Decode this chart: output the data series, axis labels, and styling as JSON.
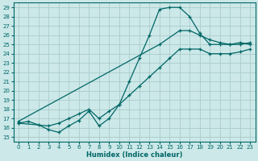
{
  "xlabel": "Humidex (Indice chaleur)",
  "bg_color": "#cce8e8",
  "line_color": "#006666",
  "grid_color": "#aacccc",
  "xlim": [
    -0.5,
    23.5
  ],
  "ylim": [
    14.5,
    29.5
  ],
  "xticks": [
    0,
    1,
    2,
    3,
    4,
    5,
    6,
    7,
    8,
    9,
    10,
    11,
    12,
    13,
    14,
    15,
    16,
    17,
    18,
    19,
    20,
    21,
    22,
    23
  ],
  "yticks": [
    15,
    16,
    17,
    18,
    19,
    20,
    21,
    22,
    23,
    24,
    25,
    26,
    27,
    28,
    29
  ],
  "curve_x": [
    0,
    1,
    2,
    3,
    4,
    5,
    6,
    7,
    8,
    9,
    10,
    11,
    12,
    13,
    14,
    15,
    16,
    17,
    18,
    19,
    20,
    21,
    22,
    23
  ],
  "curve_y": [
    16.5,
    16.7,
    16.3,
    15.8,
    15.5,
    16.2,
    16.8,
    17.8,
    16.2,
    17.0,
    18.5,
    21.0,
    23.5,
    26.0,
    28.8,
    29.0,
    29.0,
    28.0,
    26.2,
    25.0,
    25.0,
    25.0,
    25.2,
    25.0
  ],
  "line_top_x": [
    0,
    14,
    16,
    17,
    18,
    19,
    20,
    21,
    22,
    23
  ],
  "line_top_y": [
    16.7,
    25.0,
    26.5,
    26.5,
    26.0,
    25.5,
    25.2,
    25.0,
    25.0,
    25.2
  ],
  "line_bot_x": [
    0,
    3,
    4,
    5,
    6,
    7,
    8,
    9,
    10,
    11,
    12,
    13,
    14,
    15,
    16,
    17,
    18,
    19,
    20,
    21,
    22,
    23
  ],
  "line_bot_y": [
    16.5,
    16.2,
    16.5,
    17.0,
    17.5,
    18.0,
    17.0,
    17.8,
    18.5,
    19.5,
    20.5,
    21.5,
    22.5,
    23.5,
    24.5,
    24.5,
    24.5,
    24.0,
    24.0,
    24.0,
    24.2,
    24.5
  ]
}
